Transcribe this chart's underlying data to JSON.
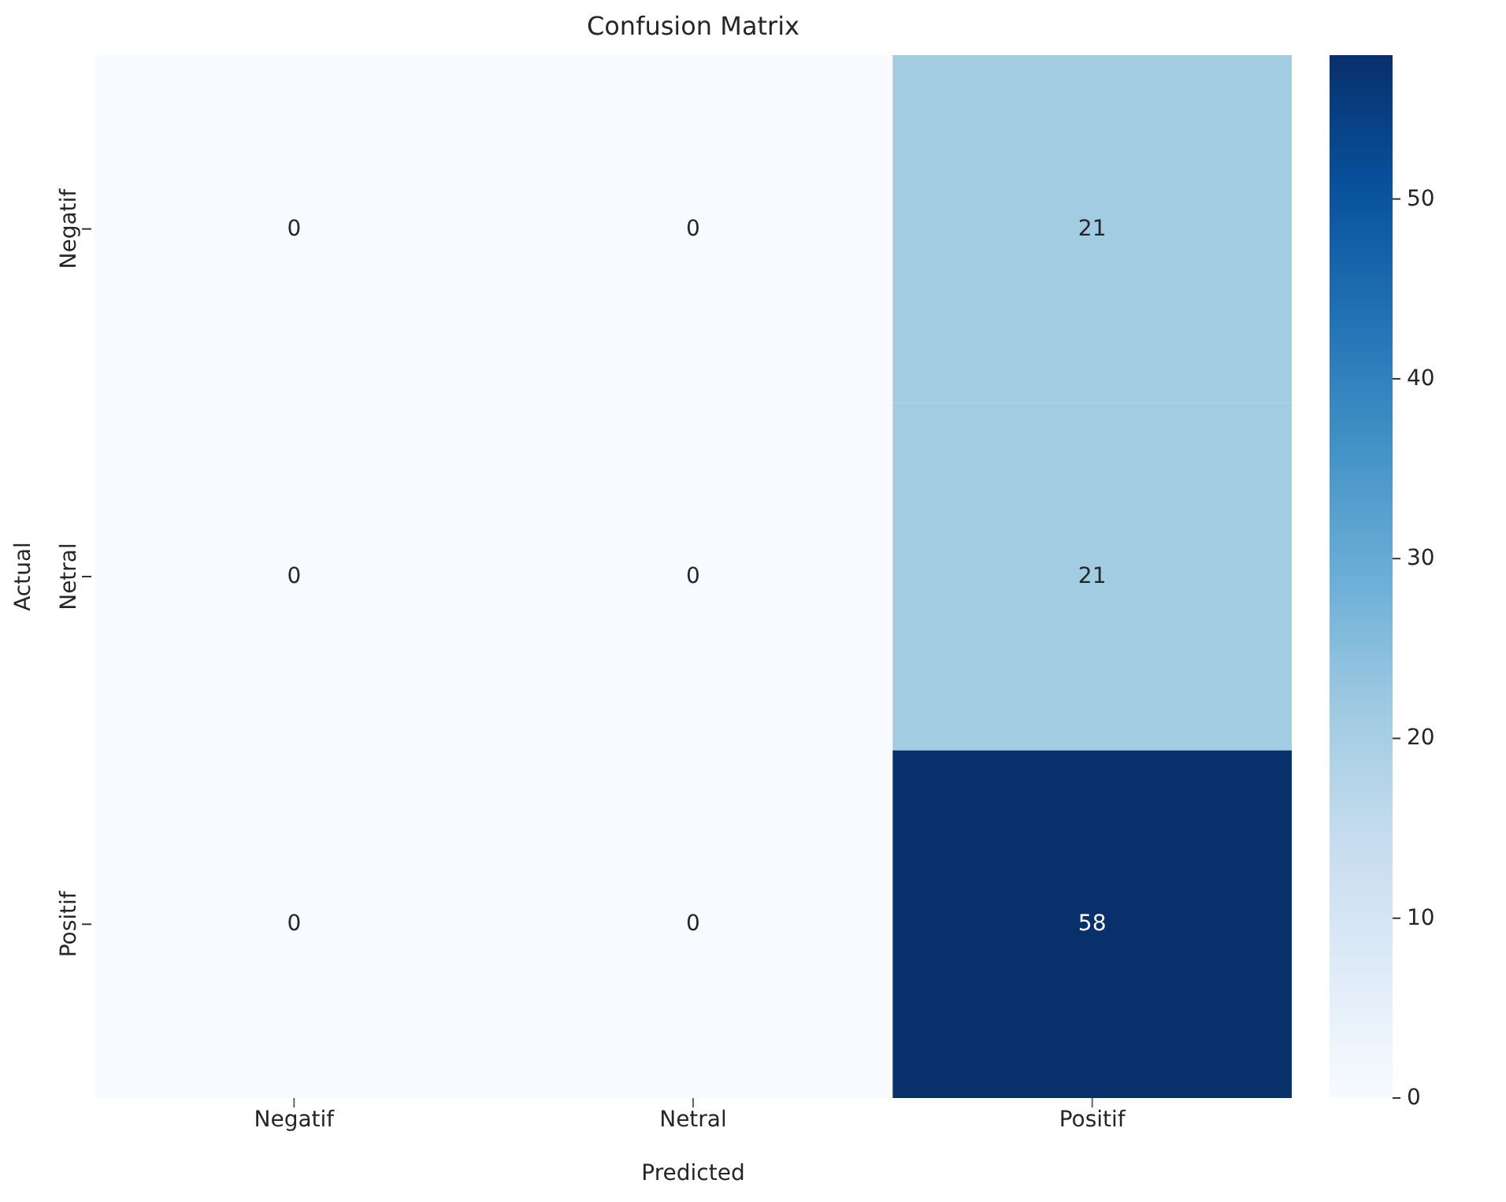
{
  "chart_data": {
    "type": "heatmap",
    "title": "Confusion Matrix",
    "xlabel": "Predicted",
    "ylabel": "Actual",
    "categories": [
      "Negatif",
      "Netral",
      "Positif"
    ],
    "y_categories": [
      "Negatif",
      "Netral",
      "Positif"
    ],
    "cells": [
      [
        0,
        0,
        21
      ],
      [
        0,
        0,
        21
      ],
      [
        0,
        0,
        58
      ]
    ],
    "data_labels": true,
    "clim": [
      0,
      58
    ],
    "cticks": [
      0,
      10,
      20,
      30,
      40,
      50
    ]
  }
}
